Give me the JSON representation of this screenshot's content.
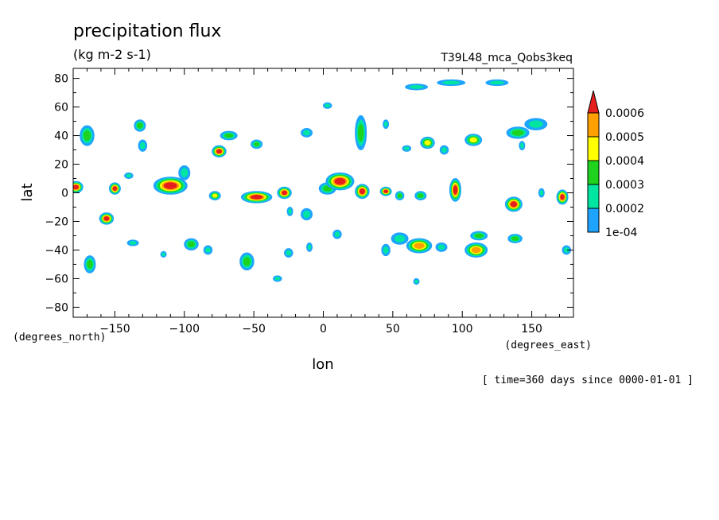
{
  "chart_data": {
    "type": "heatmap",
    "title": "precipitation flux",
    "subtitle": "(kg m-2 s-1)",
    "run_label": "T39L48_mca_Qobs3keq",
    "xlabel": "lon",
    "ylabel": "lat",
    "x_units": "(degrees_east)",
    "y_units": "(degrees_north)",
    "time_label": "[ time=360 days since 0000-01-01 ]",
    "xlim": [
      -180,
      180
    ],
    "ylim": [
      -87,
      87
    ],
    "x_ticks": [
      -150,
      -100,
      -50,
      0,
      50,
      100,
      150
    ],
    "y_ticks": [
      -80,
      -60,
      -40,
      -20,
      0,
      20,
      40,
      60,
      80
    ],
    "colorbar": {
      "levels": [
        "1e-04",
        "0.0002",
        "0.0003",
        "0.0004",
        "0.0005",
        "0.0006"
      ],
      "colors": [
        "#1ea4ff",
        "#00e6a0",
        "#1ed21e",
        "#ffff00",
        "#ffa000",
        "#e61e1e"
      ]
    },
    "features": [
      {
        "lon": -178,
        "lat": 4,
        "rx": 5,
        "ry": 4,
        "level": 5
      },
      {
        "lon": -150,
        "lat": 3,
        "rx": 4,
        "ry": 4,
        "level": 5
      },
      {
        "lon": -156,
        "lat": -18,
        "rx": 5,
        "ry": 4,
        "level": 5
      },
      {
        "lon": -110,
        "lat": 5,
        "rx": 12,
        "ry": 6,
        "level": 5
      },
      {
        "lon": -100,
        "lat": 14,
        "rx": 4,
        "ry": 5,
        "level": 1
      },
      {
        "lon": -78,
        "lat": -2,
        "rx": 4,
        "ry": 3,
        "level": 3
      },
      {
        "lon": -75,
        "lat": 29,
        "rx": 5,
        "ry": 4,
        "level": 5
      },
      {
        "lon": -48,
        "lat": -3,
        "rx": 11,
        "ry": 4,
        "level": 5
      },
      {
        "lon": -28,
        "lat": 0,
        "rx": 5,
        "ry": 4,
        "level": 5
      },
      {
        "lon": 3,
        "lat": 3,
        "rx": 6,
        "ry": 4,
        "level": 2
      },
      {
        "lon": 12,
        "lat": 8,
        "rx": 10,
        "ry": 6,
        "level": 5
      },
      {
        "lon": 28,
        "lat": 1,
        "rx": 5,
        "ry": 5,
        "level": 5
      },
      {
        "lon": 45,
        "lat": 1,
        "rx": 4,
        "ry": 3,
        "level": 5
      },
      {
        "lon": 55,
        "lat": -2,
        "rx": 3,
        "ry": 3,
        "level": 2
      },
      {
        "lon": 95,
        "lat": 2,
        "rx": 4,
        "ry": 8,
        "level": 5
      },
      {
        "lon": 70,
        "lat": -2,
        "rx": 4,
        "ry": 3,
        "level": 2
      },
      {
        "lon": 137,
        "lat": -8,
        "rx": 6,
        "ry": 5,
        "level": 5
      },
      {
        "lon": 172,
        "lat": -3,
        "rx": 4,
        "ry": 5,
        "level": 5
      },
      {
        "lon": 157,
        "lat": 0,
        "rx": 2,
        "ry": 3,
        "level": 1
      },
      {
        "lon": -132,
        "lat": 47,
        "rx": 4,
        "ry": 4,
        "level": 2
      },
      {
        "lon": -170,
        "lat": 40,
        "rx": 5,
        "ry": 7,
        "level": 2
      },
      {
        "lon": -130,
        "lat": 33,
        "rx": 3,
        "ry": 4,
        "level": 1
      },
      {
        "lon": -68,
        "lat": 40,
        "rx": 6,
        "ry": 3,
        "level": 2
      },
      {
        "lon": -48,
        "lat": 34,
        "rx": 4,
        "ry": 3,
        "level": 2
      },
      {
        "lon": -12,
        "lat": 42,
        "rx": 4,
        "ry": 3,
        "level": 1
      },
      {
        "lon": 27,
        "lat": 42,
        "rx": 4,
        "ry": 12,
        "level": 2
      },
      {
        "lon": 45,
        "lat": 48,
        "rx": 2,
        "ry": 3,
        "level": 1
      },
      {
        "lon": 75,
        "lat": 35,
        "rx": 5,
        "ry": 4,
        "level": 3
      },
      {
        "lon": 108,
        "lat": 37,
        "rx": 6,
        "ry": 4,
        "level": 3
      },
      {
        "lon": 140,
        "lat": 42,
        "rx": 8,
        "ry": 4,
        "level": 2
      },
      {
        "lon": 153,
        "lat": 48,
        "rx": 8,
        "ry": 4,
        "level": 1
      },
      {
        "lon": 143,
        "lat": 33,
        "rx": 2,
        "ry": 3,
        "level": 1
      },
      {
        "lon": 60,
        "lat": 31,
        "rx": 3,
        "ry": 2,
        "level": 1
      },
      {
        "lon": 87,
        "lat": 30,
        "rx": 3,
        "ry": 3,
        "level": 1
      },
      {
        "lon": 67,
        "lat": 74,
        "rx": 8,
        "ry": 2,
        "level": 1
      },
      {
        "lon": 92,
        "lat": 77,
        "rx": 10,
        "ry": 2,
        "level": 1
      },
      {
        "lon": 125,
        "lat": 77,
        "rx": 8,
        "ry": 2,
        "level": 1
      },
      {
        "lon": 3,
        "lat": 61,
        "rx": 3,
        "ry": 2,
        "level": 1
      },
      {
        "lon": 69,
        "lat": -37,
        "rx": 9,
        "ry": 5,
        "level": 4
      },
      {
        "lon": 55,
        "lat": -32,
        "rx": 6,
        "ry": 4,
        "level": 1
      },
      {
        "lon": 85,
        "lat": -38,
        "rx": 4,
        "ry": 3,
        "level": 1
      },
      {
        "lon": 110,
        "lat": -40,
        "rx": 8,
        "ry": 5,
        "level": 4
      },
      {
        "lon": 112,
        "lat": -30,
        "rx": 6,
        "ry": 3,
        "level": 2
      },
      {
        "lon": 138,
        "lat": -32,
        "rx": 5,
        "ry": 3,
        "level": 2
      },
      {
        "lon": -137,
        "lat": -35,
        "rx": 4,
        "ry": 2,
        "level": 1
      },
      {
        "lon": -95,
        "lat": -36,
        "rx": 5,
        "ry": 4,
        "level": 2
      },
      {
        "lon": -55,
        "lat": -48,
        "rx": 5,
        "ry": 6,
        "level": 2
      },
      {
        "lon": -168,
        "lat": -50,
        "rx": 4,
        "ry": 6,
        "level": 2
      },
      {
        "lon": -83,
        "lat": -40,
        "rx": 3,
        "ry": 3,
        "level": 1
      },
      {
        "lon": -25,
        "lat": -42,
        "rx": 3,
        "ry": 3,
        "level": 1
      },
      {
        "lon": -10,
        "lat": -38,
        "rx": 2,
        "ry": 3,
        "level": 1
      },
      {
        "lon": 10,
        "lat": -29,
        "rx": 3,
        "ry": 3,
        "level": 1
      },
      {
        "lon": 45,
        "lat": -40,
        "rx": 3,
        "ry": 4,
        "level": 1
      },
      {
        "lon": -33,
        "lat": -60,
        "rx": 3,
        "ry": 2,
        "level": 1
      },
      {
        "lon": 67,
        "lat": -62,
        "rx": 2,
        "ry": 2,
        "level": 1
      },
      {
        "lon": 175,
        "lat": -40,
        "rx": 3,
        "ry": 3,
        "level": 1
      },
      {
        "lon": -115,
        "lat": -43,
        "rx": 2,
        "ry": 2,
        "level": 1
      },
      {
        "lon": -140,
        "lat": 12,
        "rx": 3,
        "ry": 2,
        "level": 1
      },
      {
        "lon": -12,
        "lat": -15,
        "rx": 4,
        "ry": 4,
        "level": 1
      },
      {
        "lon": -24,
        "lat": -13,
        "rx": 2,
        "ry": 3,
        "level": 1
      }
    ]
  }
}
